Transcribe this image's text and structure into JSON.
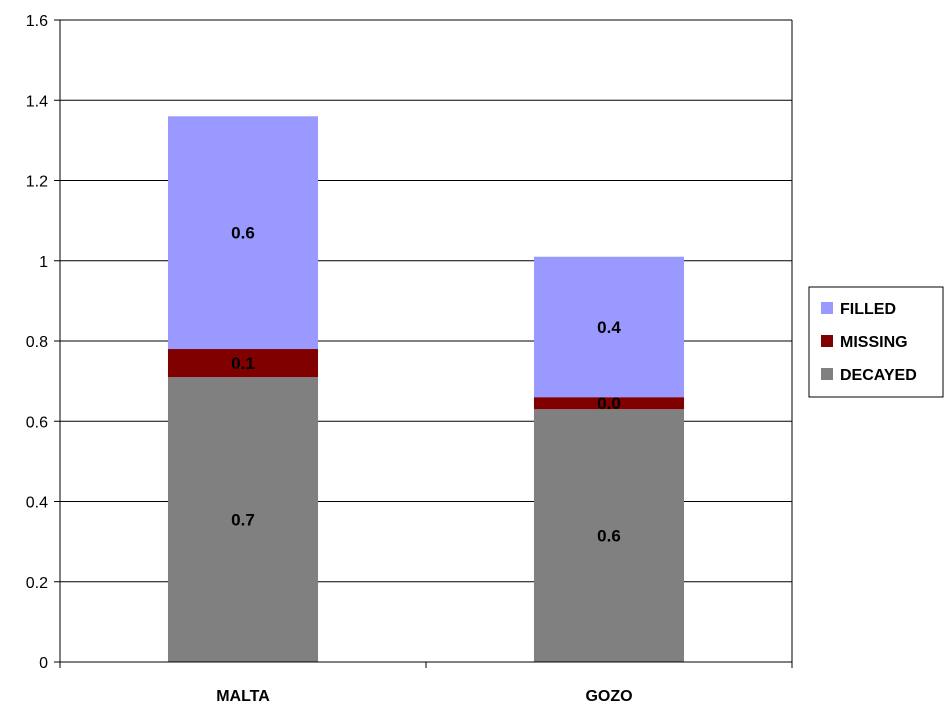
{
  "chart_data": {
    "type": "bar",
    "stacked": true,
    "categories": [
      "MALTA",
      "GOZO"
    ],
    "series": [
      {
        "name": "DECAYED",
        "values": [
          0.71,
          0.63
        ],
        "labels": [
          "0.7",
          "0.6"
        ],
        "color": "#808080"
      },
      {
        "name": "MISSING",
        "values": [
          0.07,
          0.03
        ],
        "labels": [
          "0.1",
          "0.0"
        ],
        "color": "#800000"
      },
      {
        "name": "FILLED",
        "values": [
          0.58,
          0.35
        ],
        "labels": [
          "0.6",
          "0.4"
        ],
        "color": "#9999FF"
      }
    ],
    "legend_order": [
      "FILLED",
      "MISSING",
      "DECAYED"
    ],
    "ylim": [
      0,
      1.6
    ],
    "yticks": [
      0,
      0.2,
      0.4,
      0.6,
      0.8,
      1,
      1.2,
      1.4,
      1.6
    ],
    "ytick_labels": [
      "0",
      "0.2",
      "0.4",
      "0.6",
      "0.8",
      "1",
      "1.2",
      "1.4",
      "1.6"
    ],
    "grid": true,
    "legend_position": "right",
    "title": "",
    "xlabel": "",
    "ylabel": ""
  }
}
